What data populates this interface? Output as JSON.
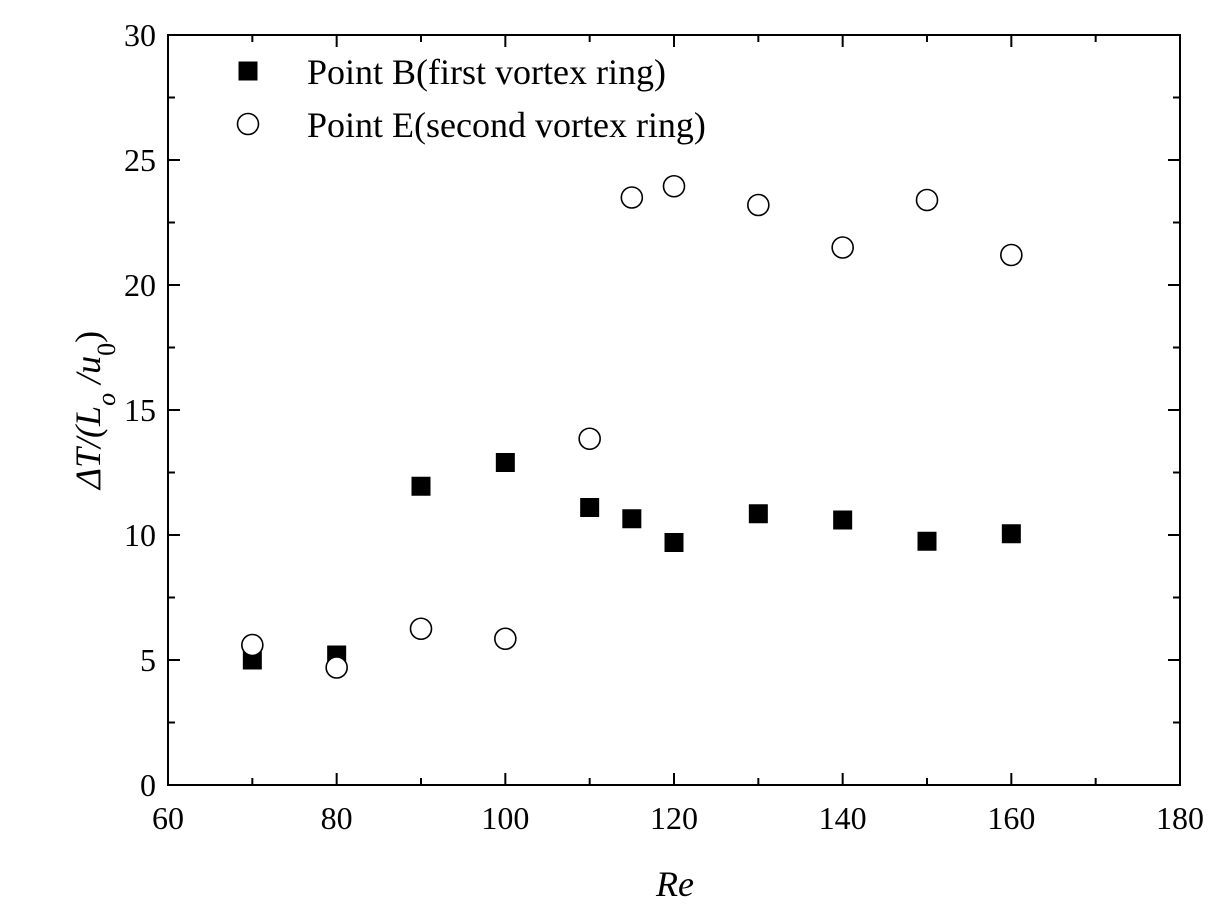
{
  "chart_data": {
    "type": "scatter",
    "xlabel": "Re",
    "ylabel": {
      "prefix": "ΔT/(L",
      "sub1": "o",
      "mid": " /u",
      "sub2": "0",
      "suffix": ")"
    },
    "xlim": [
      60,
      180
    ],
    "ylim": [
      0,
      30
    ],
    "x_ticks": [
      60,
      80,
      100,
      120,
      140,
      160,
      180
    ],
    "y_ticks": [
      0,
      5,
      10,
      15,
      20,
      25,
      30
    ],
    "grid": false,
    "legend_position": "top-left",
    "series": [
      {
        "name": "Point B(first vortex ring)",
        "marker": "filled-square",
        "color": "#000000",
        "x": [
          70,
          80,
          90,
          100,
          110,
          115,
          120,
          130,
          140,
          150,
          160
        ],
        "y": [
          5.0,
          5.2,
          11.95,
          12.9,
          11.1,
          10.65,
          9.7,
          10.85,
          10.6,
          9.75,
          10.05
        ]
      },
      {
        "name": "Point E(second vortex ring)",
        "marker": "open-circle",
        "color": "#000000",
        "x": [
          70,
          80,
          90,
          100,
          110,
          115,
          120,
          130,
          140,
          150,
          160
        ],
        "y": [
          5.6,
          4.7,
          6.25,
          5.85,
          13.85,
          23.5,
          23.95,
          23.2,
          21.5,
          23.4,
          21.2
        ]
      }
    ]
  }
}
